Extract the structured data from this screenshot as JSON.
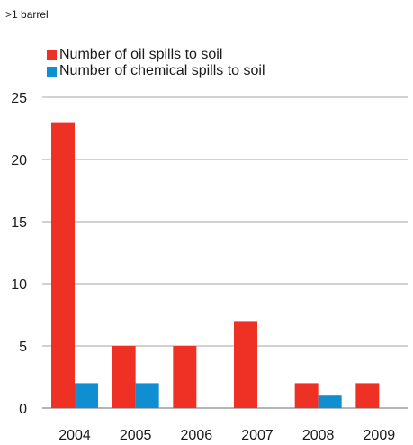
{
  "chart_data": {
    "type": "bar",
    "subtitle": ">1 barrel",
    "categories": [
      "2004",
      "2005",
      "2006",
      "2007",
      "2008",
      "2009"
    ],
    "series": [
      {
        "name": "Number of oil spills to soil",
        "color": "#ee3124",
        "values": [
          23,
          5,
          5,
          7,
          2,
          2
        ]
      },
      {
        "name": "Number of chemical spills to soil",
        "color": "#0f8fd2",
        "values": [
          2,
          2,
          0,
          0,
          1,
          0
        ]
      }
    ],
    "ylim": [
      0,
      25
    ],
    "yticks": [
      "0",
      "5",
      "10",
      "15",
      "20",
      "25"
    ],
    "grid": true,
    "legend_position": "top-left"
  }
}
